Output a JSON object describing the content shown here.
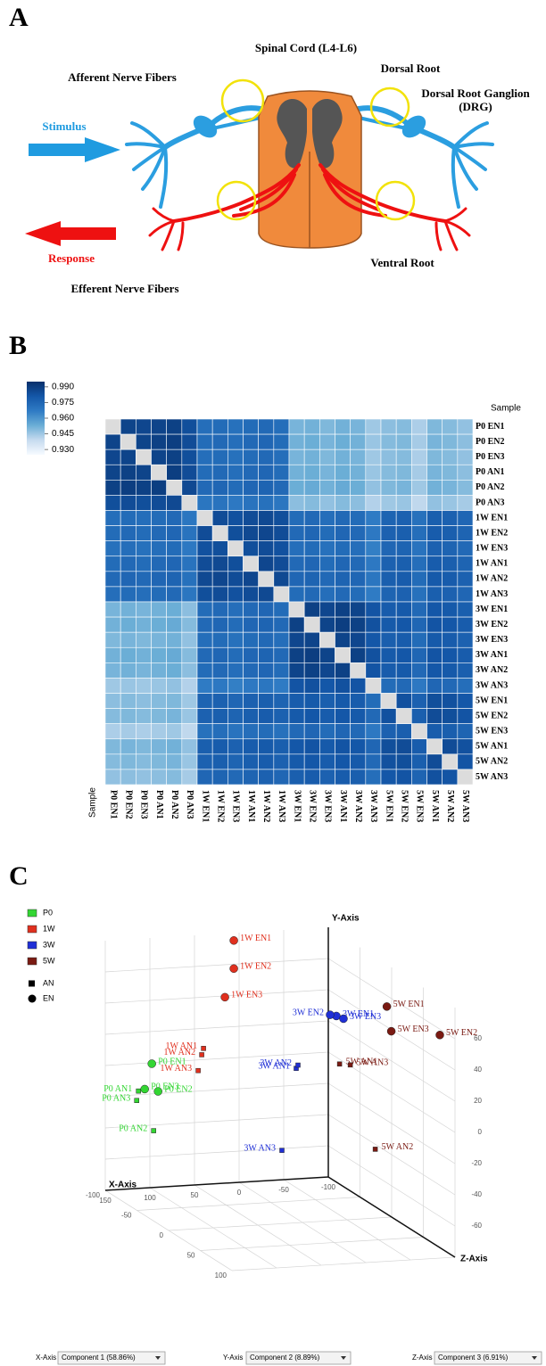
{
  "panel_labels": [
    "A",
    "B",
    "C"
  ],
  "diagram": {
    "spinal_cord": "Spinal Cord (L4-L6)",
    "afferent": "Afferent Nerve Fibers",
    "dorsal_root": "Dorsal Root",
    "drg": [
      "Dorsal Root Ganglion",
      "(DRG)"
    ],
    "stimulus": "Stimulus",
    "response": "Response",
    "ventral_root": "Ventral Root",
    "efferent": "Efferent Nerve Fibers"
  },
  "chart_data": [
    {
      "type": "heatmap",
      "axis_title": "Sample",
      "categories": [
        "P0 EN1",
        "P0 EN2",
        "P0 EN3",
        "P0 AN1",
        "P0 AN2",
        "P0 AN3",
        "1W EN1",
        "1W EN2",
        "1W EN3",
        "1W AN1",
        "1W AN2",
        "1W AN3",
        "3W EN1",
        "3W EN2",
        "3W EN3",
        "3W AN1",
        "3W AN2",
        "3W AN3",
        "5W EN1",
        "5W EN2",
        "5W EN3",
        "5W AN1",
        "5W AN2",
        "5W AN3"
      ],
      "clim": [
        0.925,
        0.995
      ],
      "colorscale": [
        "#f7fbff",
        "#c6dbef",
        "#6baed6",
        "#2f7bc4",
        "#1457a8",
        "#08306b"
      ],
      "colorbar_ticks": [
        {
          "value": 0.99,
          "label": "0.990"
        },
        0.975,
        {
          "value": 0.96,
          "label": "0.960"
        },
        0.945,
        {
          "value": 0.93,
          "label": "0.930"
        }
      ],
      "values": [
        [
          null,
          0.988,
          0.987,
          0.988,
          0.989,
          0.984,
          0.972,
          0.973,
          0.971,
          0.973,
          0.974,
          0.972,
          0.951,
          0.952,
          0.95,
          0.952,
          0.951,
          0.945,
          0.948,
          0.949,
          0.943,
          0.95,
          0.949,
          0.947
        ],
        [
          0.988,
          null,
          0.988,
          0.989,
          0.99,
          0.985,
          0.973,
          0.974,
          0.972,
          0.974,
          0.975,
          0.973,
          0.952,
          0.953,
          0.951,
          0.953,
          0.952,
          0.946,
          0.949,
          0.95,
          0.944,
          0.951,
          0.95,
          0.948
        ],
        [
          0.987,
          0.988,
          null,
          0.988,
          0.989,
          0.984,
          0.972,
          0.973,
          0.971,
          0.973,
          0.974,
          0.972,
          0.951,
          0.952,
          0.95,
          0.952,
          0.951,
          0.945,
          0.948,
          0.949,
          0.943,
          0.95,
          0.949,
          0.947
        ],
        [
          0.988,
          0.989,
          0.988,
          null,
          0.99,
          0.985,
          0.973,
          0.974,
          0.972,
          0.974,
          0.975,
          0.973,
          0.952,
          0.953,
          0.951,
          0.953,
          0.952,
          0.946,
          0.949,
          0.95,
          0.944,
          0.951,
          0.95,
          0.948
        ],
        [
          0.989,
          0.99,
          0.989,
          0.99,
          null,
          0.986,
          0.974,
          0.975,
          0.973,
          0.975,
          0.976,
          0.974,
          0.953,
          0.954,
          0.952,
          0.954,
          0.953,
          0.947,
          0.95,
          0.951,
          0.945,
          0.952,
          0.951,
          0.949
        ],
        [
          0.984,
          0.985,
          0.984,
          0.985,
          0.986,
          null,
          0.969,
          0.97,
          0.968,
          0.97,
          0.971,
          0.969,
          0.948,
          0.949,
          0.947,
          0.949,
          0.948,
          0.942,
          0.945,
          0.946,
          0.94,
          0.947,
          0.946,
          0.944
        ],
        [
          0.972,
          0.973,
          0.972,
          0.973,
          0.974,
          0.969,
          null,
          0.985,
          0.983,
          0.985,
          0.986,
          0.984,
          0.973,
          0.974,
          0.972,
          0.974,
          0.973,
          0.967,
          0.976,
          0.977,
          0.971,
          0.978,
          0.977,
          0.975
        ],
        [
          0.973,
          0.974,
          0.973,
          0.974,
          0.975,
          0.97,
          0.985,
          null,
          0.984,
          0.986,
          0.987,
          0.985,
          0.974,
          0.975,
          0.973,
          0.975,
          0.974,
          0.968,
          0.977,
          0.978,
          0.972,
          0.979,
          0.978,
          0.976
        ],
        [
          0.971,
          0.972,
          0.971,
          0.972,
          0.973,
          0.968,
          0.983,
          0.984,
          null,
          0.984,
          0.985,
          0.983,
          0.972,
          0.973,
          0.971,
          0.973,
          0.972,
          0.966,
          0.975,
          0.976,
          0.97,
          0.977,
          0.976,
          0.974
        ],
        [
          0.973,
          0.974,
          0.973,
          0.974,
          0.975,
          0.97,
          0.985,
          0.986,
          0.984,
          null,
          0.987,
          0.985,
          0.974,
          0.975,
          0.973,
          0.975,
          0.974,
          0.968,
          0.977,
          0.978,
          0.972,
          0.979,
          0.978,
          0.976
        ],
        [
          0.974,
          0.975,
          0.974,
          0.975,
          0.976,
          0.971,
          0.986,
          0.987,
          0.985,
          0.987,
          null,
          0.986,
          0.975,
          0.976,
          0.974,
          0.976,
          0.975,
          0.969,
          0.978,
          0.979,
          0.973,
          0.98,
          0.979,
          0.977
        ],
        [
          0.972,
          0.973,
          0.972,
          0.973,
          0.974,
          0.969,
          0.984,
          0.985,
          0.983,
          0.985,
          0.986,
          null,
          0.973,
          0.974,
          0.972,
          0.974,
          0.973,
          0.967,
          0.976,
          0.977,
          0.971,
          0.978,
          0.977,
          0.975
        ],
        [
          0.951,
          0.952,
          0.951,
          0.952,
          0.953,
          0.948,
          0.973,
          0.974,
          0.972,
          0.974,
          0.975,
          0.973,
          null,
          0.989,
          0.987,
          0.989,
          0.988,
          0.982,
          0.979,
          0.98,
          0.974,
          0.981,
          0.98,
          0.978
        ],
        [
          0.952,
          0.953,
          0.952,
          0.953,
          0.954,
          0.949,
          0.974,
          0.975,
          0.973,
          0.975,
          0.976,
          0.974,
          0.989,
          null,
          0.988,
          0.99,
          0.989,
          0.983,
          0.98,
          0.981,
          0.975,
          0.982,
          0.981,
          0.979
        ],
        [
          0.95,
          0.951,
          0.95,
          0.951,
          0.952,
          0.947,
          0.972,
          0.973,
          0.971,
          0.973,
          0.974,
          0.972,
          0.987,
          0.988,
          null,
          0.988,
          0.987,
          0.981,
          0.978,
          0.979,
          0.973,
          0.98,
          0.979,
          0.977
        ],
        [
          0.952,
          0.953,
          0.952,
          0.953,
          0.954,
          0.949,
          0.974,
          0.975,
          0.973,
          0.975,
          0.976,
          0.974,
          0.989,
          0.99,
          0.988,
          null,
          0.989,
          0.983,
          0.98,
          0.981,
          0.975,
          0.982,
          0.981,
          0.979
        ],
        [
          0.951,
          0.952,
          0.951,
          0.952,
          0.953,
          0.948,
          0.973,
          0.974,
          0.972,
          0.974,
          0.975,
          0.973,
          0.988,
          0.989,
          0.987,
          0.989,
          null,
          0.982,
          0.979,
          0.98,
          0.974,
          0.981,
          0.98,
          0.978
        ],
        [
          0.945,
          0.946,
          0.945,
          0.946,
          0.947,
          0.942,
          0.967,
          0.968,
          0.966,
          0.968,
          0.969,
          0.967,
          0.982,
          0.983,
          0.981,
          0.983,
          0.982,
          null,
          0.973,
          0.974,
          0.968,
          0.975,
          0.974,
          0.972
        ],
        [
          0.948,
          0.949,
          0.948,
          0.949,
          0.95,
          0.945,
          0.976,
          0.977,
          0.975,
          0.977,
          0.978,
          0.976,
          0.979,
          0.98,
          0.978,
          0.98,
          0.979,
          0.973,
          null,
          0.983,
          0.977,
          0.984,
          0.983,
          0.981
        ],
        [
          0.949,
          0.95,
          0.949,
          0.95,
          0.951,
          0.946,
          0.977,
          0.978,
          0.976,
          0.978,
          0.979,
          0.977,
          0.98,
          0.981,
          0.979,
          0.981,
          0.98,
          0.974,
          0.983,
          null,
          0.978,
          0.985,
          0.984,
          0.982
        ],
        [
          0.943,
          0.944,
          0.943,
          0.944,
          0.945,
          0.94,
          0.971,
          0.972,
          0.97,
          0.972,
          0.973,
          0.971,
          0.974,
          0.975,
          0.973,
          0.975,
          0.974,
          0.968,
          0.977,
          0.978,
          null,
          0.979,
          0.978,
          0.976
        ],
        [
          0.95,
          0.951,
          0.95,
          0.951,
          0.952,
          0.947,
          0.978,
          0.979,
          0.977,
          0.979,
          0.98,
          0.978,
          0.981,
          0.982,
          0.98,
          0.982,
          0.981,
          0.975,
          0.984,
          0.985,
          0.979,
          null,
          0.985,
          0.983
        ],
        [
          0.949,
          0.95,
          0.949,
          0.95,
          0.951,
          0.946,
          0.977,
          0.978,
          0.976,
          0.978,
          0.979,
          0.977,
          0.98,
          0.981,
          0.979,
          0.981,
          0.98,
          0.974,
          0.983,
          0.984,
          0.978,
          0.985,
          null,
          0.982
        ],
        [
          0.947,
          0.948,
          0.947,
          0.948,
          0.949,
          0.944,
          0.975,
          0.976,
          0.974,
          0.976,
          0.977,
          0.975,
          0.978,
          0.979,
          0.977,
          0.979,
          0.978,
          0.972,
          0.981,
          0.982,
          0.976,
          0.983,
          0.982,
          null
        ]
      ]
    },
    {
      "type": "scatter3d",
      "xlim": [
        -100,
        150
      ],
      "ylim": [
        -80,
        80
      ],
      "zlim": [
        -100,
        100
      ],
      "xticks": [
        -100,
        -50,
        0,
        50,
        100,
        150
      ],
      "yticks": [
        -60,
        -40,
        -20,
        0,
        20,
        40,
        60
      ],
      "zticks": [
        -100,
        -50,
        0,
        50,
        100
      ],
      "grid": true,
      "markers": [
        {
          "name": "AN",
          "shape": "square"
        },
        {
          "name": "EN",
          "shape": "circle"
        }
      ],
      "series": [
        {
          "name": "P0",
          "color": "#33d633",
          "labels": [
            "P0 EN1",
            "P0 EN2",
            "P0 EN3",
            "P0 AN1",
            "P0 AN2",
            "P0 AN3"
          ],
          "x": [
            112,
            105,
            120,
            127,
            110,
            129
          ],
          "y": [
            5,
            -13,
            -11,
            -12,
            -38,
            -18
          ],
          "z": [
            -80,
            -80,
            -80,
            -80,
            -80,
            -80
          ],
          "shapes": [
            "circle",
            "circle",
            "circle",
            "square",
            "square",
            "square"
          ]
        },
        {
          "name": "1W",
          "color": "#e0301e",
          "labels": [
            "1W EN1",
            "1W EN2",
            "1W EN3",
            "1W AN1",
            "1W AN2",
            "1W AN3"
          ],
          "x": [
            13,
            13,
            23,
            47,
            49,
            53
          ],
          "y": [
            78,
            60,
            42,
            10,
            6,
            -4
          ],
          "z": [
            -90,
            -90,
            -90,
            -90,
            -90,
            -90
          ],
          "shapes": [
            "circle",
            "circle",
            "circle",
            "square",
            "square",
            "square"
          ]
        },
        {
          "name": "3W",
          "color": "#1f2fd6",
          "labels": [
            "3W EN1",
            "3W EN2",
            "3W EN3",
            "3W AN1",
            "3W AN2",
            "3W AN3"
          ],
          "x": [
            -38,
            -31,
            -46,
            7,
            5,
            23
          ],
          "y": [
            51,
            52,
            49,
            19,
            21,
            -33
          ],
          "z": [
            0,
            0,
            0,
            0,
            0,
            0
          ],
          "shapes": [
            "circle",
            "circle",
            "circle",
            "square",
            "square",
            "square"
          ]
        },
        {
          "name": "5W",
          "color": "#7a1a12",
          "labels": [
            "5W EN1",
            "5W EN2",
            "5W EN3",
            "5W AN1",
            "5W AN2",
            "5W AN3"
          ],
          "x": [
            -52,
            -83,
            -57,
            1,
            -39,
            -11
          ],
          "y": [
            72,
            63,
            56,
            37,
            -19,
            36
          ],
          "z": [
            60,
            100,
            60,
            60,
            60,
            60
          ],
          "shapes": [
            "circle",
            "circle",
            "circle",
            "square",
            "square",
            "square"
          ]
        }
      ],
      "controls": [
        {
          "label": "X-Axis",
          "value": "Component 1 (58.86%)"
        },
        {
          "label": "Y-Axis",
          "value": "Component 2 (8.89%)"
        },
        {
          "label": "Z-Axis",
          "value": "Component 3 (6.91%)"
        }
      ]
    }
  ]
}
